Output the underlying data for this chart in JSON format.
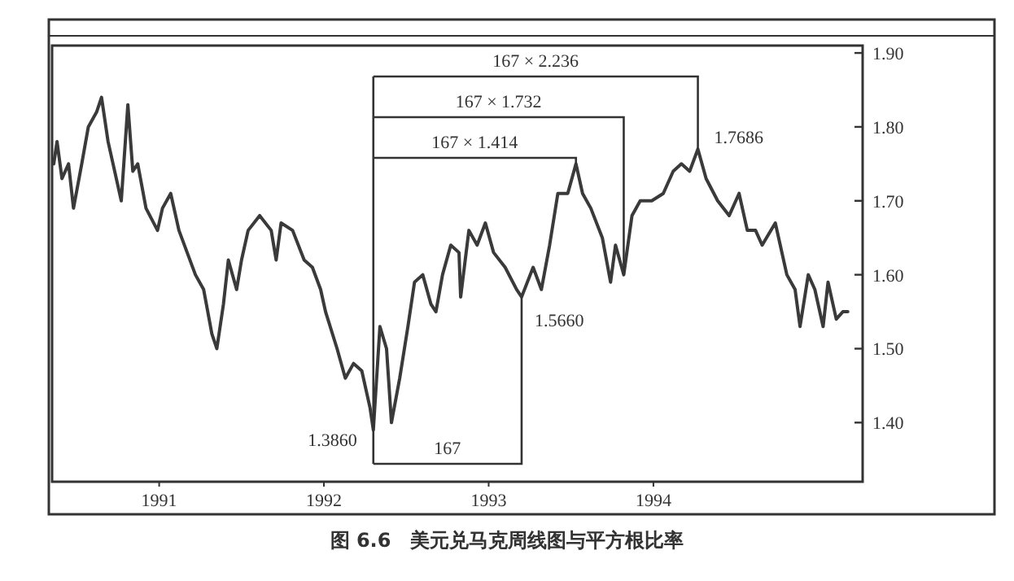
{
  "chart_data": {
    "type": "line",
    "xlim": [
      1990.35,
      1995.27
    ],
    "ylim": [
      1.32,
      1.91
    ],
    "xticks": [
      1991,
      1992,
      1993,
      1994
    ],
    "yticks": [
      {
        "value": 1.4,
        "label": "1.40"
      },
      {
        "value": 1.5,
        "label": "1.50"
      },
      {
        "value": 1.6,
        "label": "1.60"
      },
      {
        "value": 1.7,
        "label": "1.70"
      },
      {
        "value": 1.8,
        "label": "1.80"
      },
      {
        "value": 1.9,
        "label": "1.90"
      }
    ],
    "grid": false,
    "series": [
      {
        "color": "#3a3a3a",
        "x": [
          1990.36,
          1990.38,
          1990.41,
          1990.45,
          1990.48,
          1990.53,
          1990.57,
          1990.62,
          1990.65,
          1990.69,
          1990.72,
          1990.77,
          1990.81,
          1990.84,
          1990.87,
          1990.92,
          1990.99,
          1991.02,
          1991.07,
          1991.12,
          1991.17,
          1991.22,
          1991.27,
          1991.32,
          1991.35,
          1991.39,
          1991.42,
          1991.47,
          1991.5,
          1991.54,
          1991.61,
          1991.68,
          1991.71,
          1991.74,
          1991.81,
          1991.88,
          1991.93,
          1991.98,
          1992.01,
          1992.08,
          1992.13,
          1992.18,
          1992.23,
          1992.28,
          1992.3,
          1992.34,
          1992.38,
          1992.41,
          1992.46,
          1992.51,
          1992.55,
          1992.6,
          1992.65,
          1992.68,
          1992.72,
          1992.77,
          1992.82,
          1992.83,
          1992.88,
          1992.93,
          1992.98,
          1993.03,
          1993.1,
          1993.17,
          1993.2,
          1993.27,
          1993.32,
          1993.37,
          1993.42,
          1993.48,
          1993.53,
          1993.57,
          1993.62,
          1993.69,
          1993.74,
          1993.77,
          1993.82,
          1993.87,
          1993.92,
          1993.99,
          1994.06,
          1994.12,
          1994.17,
          1994.22,
          1994.27,
          1994.32,
          1994.39,
          1994.46,
          1994.52,
          1994.57,
          1994.62,
          1994.66,
          1994.74,
          1994.81,
          1994.86,
          1994.89,
          1994.94,
          1994.98,
          1995.03,
          1995.06,
          1995.11,
          1995.15,
          1995.18
        ],
        "values": [
          1.75,
          1.78,
          1.73,
          1.75,
          1.69,
          1.75,
          1.8,
          1.82,
          1.84,
          1.78,
          1.75,
          1.7,
          1.83,
          1.74,
          1.75,
          1.69,
          1.66,
          1.69,
          1.71,
          1.66,
          1.63,
          1.6,
          1.58,
          1.52,
          1.5,
          1.56,
          1.62,
          1.58,
          1.62,
          1.66,
          1.68,
          1.66,
          1.62,
          1.67,
          1.66,
          1.62,
          1.61,
          1.58,
          1.55,
          1.5,
          1.46,
          1.48,
          1.47,
          1.42,
          1.39,
          1.53,
          1.5,
          1.4,
          1.46,
          1.53,
          1.59,
          1.6,
          1.56,
          1.55,
          1.6,
          1.64,
          1.63,
          1.57,
          1.66,
          1.64,
          1.67,
          1.63,
          1.61,
          1.58,
          1.57,
          1.61,
          1.58,
          1.64,
          1.71,
          1.71,
          1.75,
          1.71,
          1.69,
          1.65,
          1.59,
          1.64,
          1.6,
          1.68,
          1.7,
          1.7,
          1.71,
          1.74,
          1.75,
          1.74,
          1.77,
          1.73,
          1.7,
          1.68,
          1.71,
          1.66,
          1.66,
          1.64,
          1.67,
          1.6,
          1.58,
          1.53,
          1.6,
          1.58,
          1.53,
          1.59,
          1.54,
          1.55,
          1.55
        ]
      }
    ],
    "ref_lines": [
      {
        "axis": "x",
        "value": 1992.3
      }
    ],
    "annotations": [
      {
        "text": "1.3860",
        "x": 1992.3,
        "y": 1.386
      },
      {
        "text": "1.5660",
        "x": 1993.2,
        "y": 1.566
      },
      {
        "text": "1.7686",
        "x": 1994.27,
        "y": 1.7686
      },
      {
        "text": "167",
        "x": 1993.2,
        "y": 1.57
      },
      {
        "text": "167 × 1.414",
        "x": 1993.53,
        "y": 1.75
      },
      {
        "text": "167 × 1.732",
        "x": 1993.82,
        "y": 1.6
      },
      {
        "text": "167 × 2.236",
        "x": 1994.27,
        "y": 1.77
      },
      "图 6.6　美元兑马克周线图与平方根比率"
    ]
  }
}
